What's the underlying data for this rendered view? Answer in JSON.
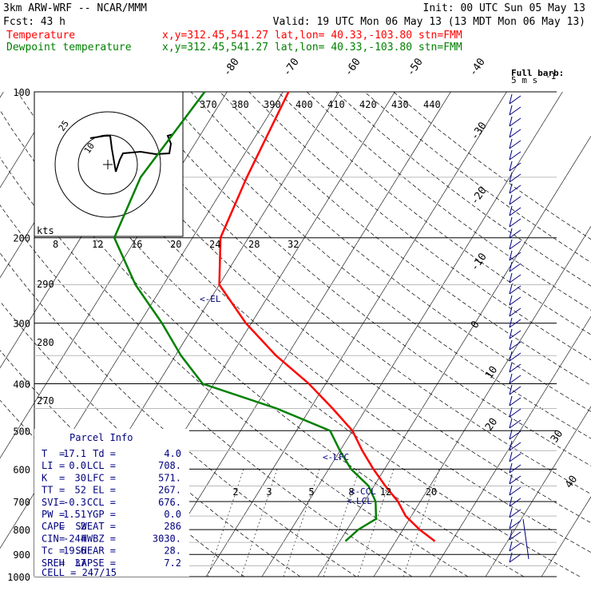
{
  "header": {
    "model": "3km ARW-WRF -- NCAR/MMM",
    "init": "Init: 00 UTC Sun 05 May 13",
    "fcst_label": "Fcst:",
    "fcst_value": "43 h",
    "valid": "Valid: 19 UTC Mon 06 May 13 (13 MDT Mon 06 May 13)",
    "temp_label": "Temperature",
    "temp_info": "x,y=312.45,541.27   lat,lon= 40.33,-103.80   stn=FMM",
    "dew_label": "Dewpoint temperature",
    "dew_info": "x,y=312.45,541.27   lat,lon= 40.33,-103.80   stn=FMM"
  },
  "colors": {
    "temperature": "#ff0000",
    "dewpoint": "#008000",
    "text": "#000000",
    "parcel_text": "#00007f",
    "background": "#ffffff"
  },
  "labels": {
    "full_barb": "Full barb:",
    "barb_speed": "5 m s",
    "kts": "kts",
    "el": "<-EL",
    "lfc": "<-LFC",
    "ccl": "CCL",
    "lcl": "LCL"
  },
  "chart_data": {
    "type": "skew-t",
    "pressure_levels": [
      100,
      200,
      300,
      400,
      500,
      600,
      700,
      800,
      900,
      1000
    ],
    "isotherm_labels": [
      "-80",
      "-70",
      "-60",
      "-50",
      "-40",
      "-30",
      "-20",
      "-10",
      "0",
      "10",
      "20",
      "30",
      "40"
    ],
    "theta_labels": [
      "370",
      "380",
      "390",
      "400",
      "410",
      "420",
      "430",
      "440"
    ],
    "dry_adiabat_labels": [
      "290",
      "280",
      "270"
    ],
    "mixing_ratio_labels": [
      "2",
      "3",
      "5",
      "8",
      "12",
      "20"
    ],
    "hodograph_speed_labels": [
      "8",
      "12",
      "16",
      "20",
      "24",
      "28",
      "32"
    ],
    "hodograph_rings": [
      "25",
      "10"
    ],
    "temperature": [
      {
        "p": 100,
        "t": -59
      },
      {
        "p": 150,
        "t": -57
      },
      {
        "p": 200,
        "t": -55
      },
      {
        "p": 250,
        "t": -50
      },
      {
        "p": 300,
        "t": -41
      },
      {
        "p": 350,
        "t": -32
      },
      {
        "p": 400,
        "t": -23
      },
      {
        "p": 450,
        "t": -16
      },
      {
        "p": 500,
        "t": -10
      },
      {
        "p": 550,
        "t": -6
      },
      {
        "p": 600,
        "t": -2
      },
      {
        "p": 650,
        "t": 2
      },
      {
        "p": 700,
        "t": 6
      },
      {
        "p": 750,
        "t": 9
      },
      {
        "p": 800,
        "t": 13
      },
      {
        "p": 845,
        "t": 17
      }
    ],
    "dewpoint": [
      {
        "p": 100,
        "t": -74
      },
      {
        "p": 150,
        "t": -76
      },
      {
        "p": 200,
        "t": -74
      },
      {
        "p": 250,
        "t": -65
      },
      {
        "p": 300,
        "t": -56
      },
      {
        "p": 350,
        "t": -49
      },
      {
        "p": 400,
        "t": -42
      },
      {
        "p": 450,
        "t": -26
      },
      {
        "p": 500,
        "t": -14
      },
      {
        "p": 550,
        "t": -10
      },
      {
        "p": 600,
        "t": -6
      },
      {
        "p": 650,
        "t": -1
      },
      {
        "p": 700,
        "t": 2
      },
      {
        "p": 760,
        "t": 4
      },
      {
        "p": 800,
        "t": 2
      },
      {
        "p": 845,
        "t": 1
      }
    ],
    "level_markers": [
      {
        "name": "EL",
        "p": 267
      },
      {
        "name": "LFC",
        "p": 571
      },
      {
        "name": "CCL",
        "p": 676
      },
      {
        "name": "LCL",
        "p": 708
      }
    ],
    "parcel_info": {
      "title": "Parcel Info",
      "rows": [
        {
          "k1": "T",
          "v1": "17.1",
          "k2": "Td",
          "v2": "4.0"
        },
        {
          "k1": "LI",
          "v1": "0.0",
          "k2": "LCL",
          "v2": "708."
        },
        {
          "k1": "K",
          "v1": "30",
          "k2": "LFC",
          "v2": "571."
        },
        {
          "k1": "TT",
          "v1": "52",
          "k2": "EL",
          "v2": "267."
        },
        {
          "k1": "SVI",
          "v1": "-0.3",
          "k2": "CCL",
          "v2": "676."
        },
        {
          "k1": "PW",
          "v1": "1.51",
          "k2": "YGP",
          "v2": "0.0"
        },
        {
          "k1": "CAPE",
          "v1": "2",
          "k2": "SWEAT",
          "v2": "286"
        },
        {
          "k1": "CIN",
          "v1": "-244",
          "k2": "HWBZ",
          "v2": "3030."
        },
        {
          "k1": "Tc",
          "v1": "19.6",
          "k2": "SHEAR",
          "v2": "28."
        },
        {
          "k1": "SREH",
          "v1": "37",
          "k2": "LAPSE",
          "v2": "7.2"
        }
      ],
      "cell": "CELL = 247/15"
    }
  }
}
